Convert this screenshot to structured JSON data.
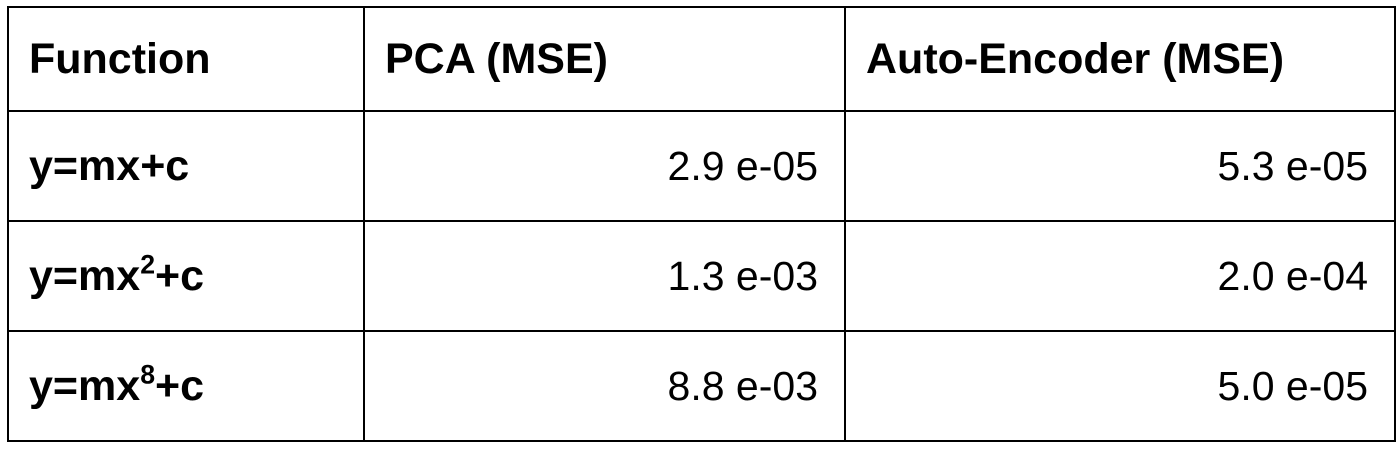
{
  "table": {
    "headers": [
      "Function",
      "PCA (MSE)",
      "Auto-Encoder (MSE)"
    ],
    "rows": [
      {
        "function_base": "y=mx",
        "function_exponent": "",
        "function_tail": "+c",
        "pca": "2.9 e-05",
        "autoencoder": "5.3 e-05"
      },
      {
        "function_base": "y=mx",
        "function_exponent": "2",
        "function_tail": "+c",
        "pca": "1.3 e-03",
        "autoencoder": "2.0 e-04"
      },
      {
        "function_base": "y=mx",
        "function_exponent": "8",
        "function_tail": "+c",
        "pca": "8.8 e-03",
        "autoencoder": "5.0 e-05"
      }
    ]
  }
}
